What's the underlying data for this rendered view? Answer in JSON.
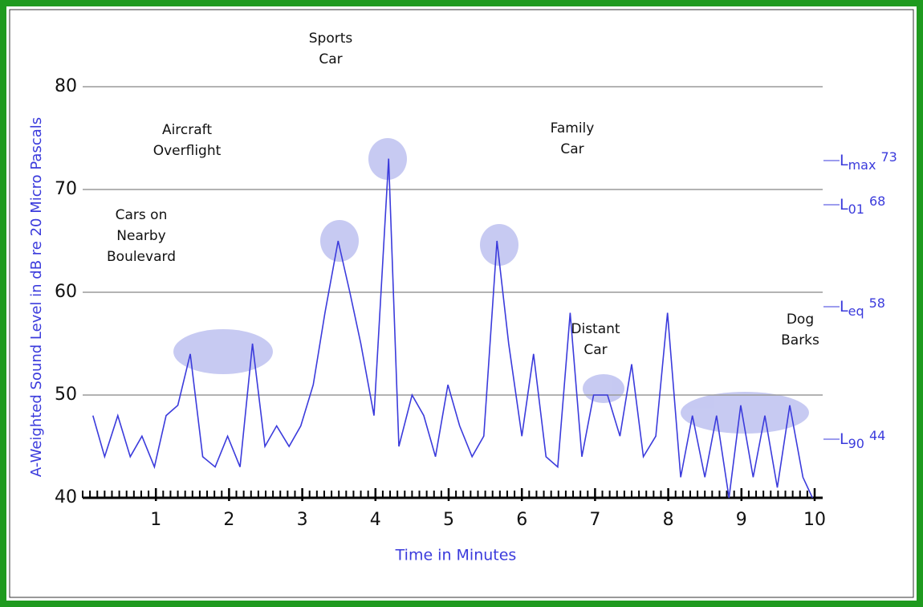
{
  "chart_data": {
    "type": "line",
    "xlabel": "Time in Minutes",
    "ylabel": "A-Weighted Sound Level in dB re 20 Micro Pascals",
    "xlim": [
      0,
      10
    ],
    "ylim": [
      40,
      80
    ],
    "xticks": [
      1,
      2,
      3,
      4,
      5,
      6,
      7,
      8,
      9,
      10
    ],
    "yticks": [
      40,
      50,
      60,
      70,
      80
    ],
    "grid": true,
    "series": [
      {
        "color": "#3b3bdc",
        "x": [
          0.14,
          0.3,
          0.48,
          0.65,
          0.81,
          0.98,
          1.14,
          1.3,
          1.47,
          1.64,
          1.81,
          1.98,
          2.15,
          2.32,
          2.49,
          2.65,
          2.82,
          2.98,
          3.15,
          3.31,
          3.49,
          3.65,
          3.8,
          3.98,
          4.18,
          4.32,
          4.5,
          4.66,
          4.82,
          4.99,
          5.15,
          5.32,
          5.48,
          5.66,
          5.82,
          6.0,
          6.16,
          6.33,
          6.49,
          6.66,
          6.82,
          6.98,
          7.17,
          7.34,
          7.5,
          7.66,
          7.83,
          7.99,
          8.17,
          8.33,
          8.5,
          8.66,
          8.83,
          8.99,
          9.16,
          9.32,
          9.49,
          9.66,
          9.84,
          9.97
        ],
        "values": [
          48,
          44,
          48,
          44,
          46,
          43,
          48,
          49,
          54,
          44,
          43,
          46,
          43,
          55,
          45,
          47,
          45,
          47,
          51,
          58,
          65,
          60,
          55,
          48,
          73,
          45,
          50,
          48,
          44,
          51,
          47,
          44,
          46,
          65,
          55,
          46,
          54,
          44,
          43,
          58,
          44,
          50,
          50,
          46,
          53,
          44,
          46,
          58,
          42,
          48,
          42,
          48,
          40,
          49,
          42,
          48,
          41,
          49,
          42,
          40
        ]
      }
    ],
    "annotations": [
      {
        "lines": [
          "Sports",
          "Car"
        ]
      },
      {
        "lines": [
          "Aircraft",
          "Overflight"
        ]
      },
      {
        "lines": [
          "Family",
          "Car"
        ]
      },
      {
        "lines": [
          "Cars on",
          "Nearby",
          "Boulevard"
        ]
      },
      {
        "lines": [
          "Distant",
          "Car"
        ]
      },
      {
        "lines": [
          "Dog",
          "Barks"
        ]
      }
    ],
    "levels": [
      {
        "symbol": "L",
        "sub": "max",
        "value": 73
      },
      {
        "symbol": "L",
        "sub": "01",
        "value": 68
      },
      {
        "symbol": "L",
        "sub": "eq",
        "value": 58
      },
      {
        "symbol": "L",
        "sub": "90",
        "value": 44
      }
    ]
  }
}
